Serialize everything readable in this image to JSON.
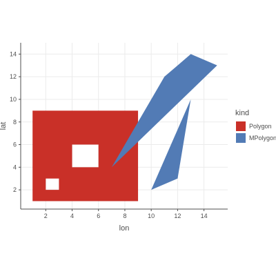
{
  "chart_data": {
    "type": "polygon-map",
    "xlabel": "lon",
    "ylabel": "lat",
    "xlim": [
      0.1,
      15.8
    ],
    "ylim": [
      0.3,
      15.0
    ],
    "x_ticks": [
      2,
      4,
      6,
      8,
      10,
      12,
      14
    ],
    "y_ticks": [
      2,
      4,
      6,
      8,
      10,
      12,
      14
    ],
    "x_tick_labels": [
      "2",
      "4",
      "6",
      "8",
      "10",
      "12",
      "14"
    ],
    "y_tick_labels": [
      "2",
      "4",
      "6",
      "8",
      "10",
      "12",
      "14"
    ],
    "grid": true,
    "legend": {
      "title": "kind",
      "position": "right",
      "entries": [
        {
          "label": "Polygon",
          "color": "#c93028"
        },
        {
          "label": "MPolygon",
          "color": "#527bb5"
        }
      ]
    },
    "series": [
      {
        "name": "Polygon",
        "color": "#c93028",
        "outer": [
          [
            1,
            1
          ],
          [
            9,
            1
          ],
          [
            9,
            9
          ],
          [
            1,
            9
          ]
        ],
        "holes": [
          [
            [
              2,
              2
            ],
            [
              3,
              2
            ],
            [
              3,
              3
            ],
            [
              2,
              3
            ]
          ],
          [
            [
              4,
              4
            ],
            [
              6,
              4
            ],
            [
              6,
              6
            ],
            [
              4,
              6
            ]
          ]
        ]
      },
      {
        "name": "MPolygon",
        "color": "#527bb5",
        "polygons": [
          [
            [
              7,
              4
            ],
            [
              11,
              12
            ],
            [
              13,
              14
            ],
            [
              15,
              13
            ]
          ],
          [
            [
              10,
              2
            ],
            [
              12,
              3
            ],
            [
              13,
              10
            ]
          ]
        ]
      }
    ]
  }
}
